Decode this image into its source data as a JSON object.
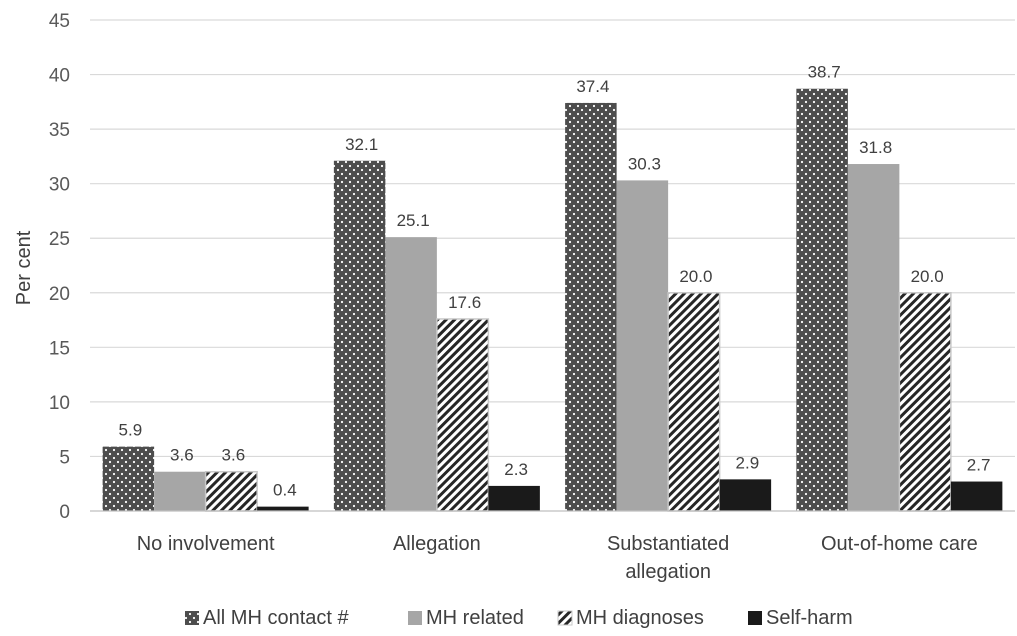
{
  "chart_data": {
    "type": "bar",
    "title": "",
    "xlabel": "",
    "ylabel": "Per cent",
    "ylim": [
      0,
      45
    ],
    "yticks": [
      "0",
      "5",
      "10",
      "15",
      "20",
      "25",
      "30",
      "35",
      "40",
      "45"
    ],
    "grid": "horizontal",
    "legend_position": "bottom",
    "categories": [
      [
        "No involvement"
      ],
      [
        "Allegation"
      ],
      [
        "Substantiated",
        "allegation"
      ],
      [
        "Out-of-home care"
      ]
    ],
    "series": [
      {
        "name": "All MH contact #",
        "style": "dotted-dark",
        "color": "#595959",
        "values": [
          5.9,
          32.1,
          37.4,
          38.7
        ],
        "labels": [
          "5.9",
          "32.1",
          "37.4",
          "38.7"
        ]
      },
      {
        "name": "MH related",
        "style": "solid-light",
        "color": "#a6a6a6",
        "values": [
          3.6,
          25.1,
          30.3,
          31.8
        ],
        "labels": [
          "3.6",
          "25.1",
          "30.3",
          "31.8"
        ]
      },
      {
        "name": "MH diagnoses",
        "style": "diagonal-hatch",
        "color": "#262626",
        "values": [
          3.6,
          17.6,
          20.0,
          20.0
        ],
        "labels": [
          "3.6",
          "17.6",
          "20.0",
          "20.0"
        ]
      },
      {
        "name": "Self-harm",
        "style": "solid-dark",
        "color": "#1a1a1a",
        "values": [
          0.4,
          2.3,
          2.9,
          2.7
        ],
        "labels": [
          "0.4",
          "2.3",
          "2.9",
          "2.7"
        ]
      }
    ]
  }
}
